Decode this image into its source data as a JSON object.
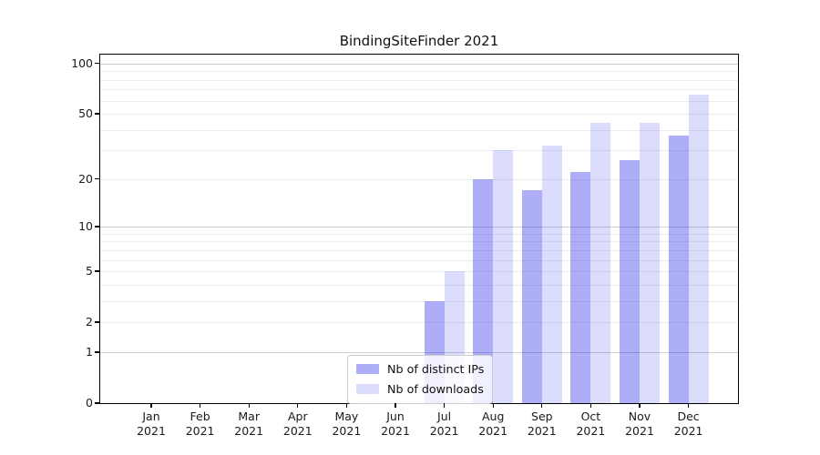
{
  "chart_data": {
    "type": "bar",
    "title": "BindingSiteFinder 2021",
    "year": "2021",
    "categories": [
      "Jan",
      "Feb",
      "Mar",
      "Apr",
      "May",
      "Jun",
      "Jul",
      "Aug",
      "Sep",
      "Oct",
      "Nov",
      "Dec"
    ],
    "series": [
      {
        "name": "Nb of distinct IPs",
        "base_color": "#1414eb",
        "alpha": 0.35,
        "fill": "rgba(20,20,235,0.35)",
        "values": [
          0,
          0,
          0,
          0,
          0,
          0,
          3,
          20,
          17,
          22,
          26,
          37
        ]
      },
      {
        "name": "Nb of downloads",
        "base_color": "#1414eb",
        "alpha": 0.15,
        "fill": "rgba(20,20,235,0.15)",
        "values": [
          0,
          0,
          0,
          0,
          0,
          0,
          5,
          30,
          32,
          44,
          44,
          65
        ]
      }
    ],
    "xlabel": "",
    "ylabel": "",
    "y_ticks": [
      100,
      50,
      20,
      10,
      5,
      2,
      1,
      0
    ],
    "ylim": [
      0,
      113
    ],
    "yscale": "log1p",
    "grid": "horizontal, major and minor",
    "grid_major_values": [
      1,
      10,
      100
    ],
    "legend_position": "inside bottom-center",
    "background": "#ffffff",
    "text_color": "#1a1a1a",
    "grid_major_color": "#cfcfcf",
    "grid_minor_color": "#ededed"
  }
}
